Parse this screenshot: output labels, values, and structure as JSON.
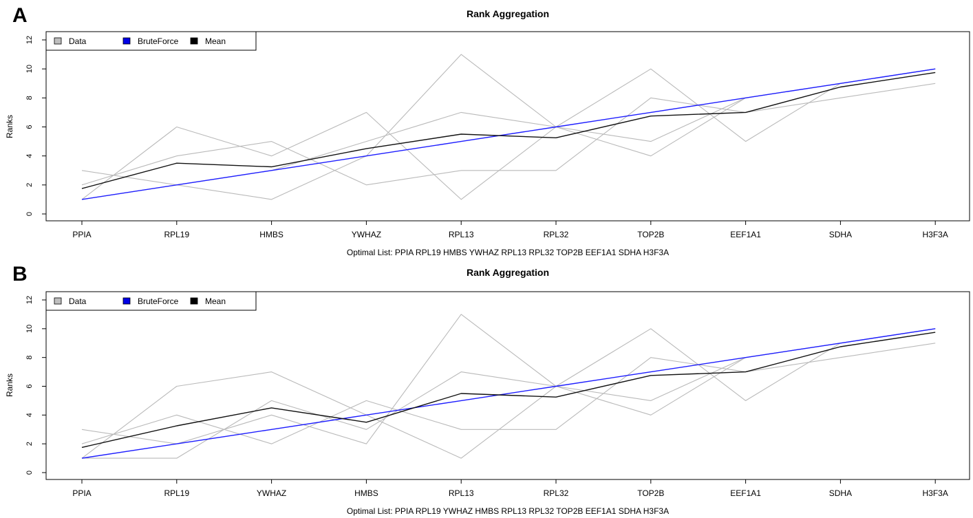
{
  "colors": {
    "data": "#b9b9b9",
    "bruteforce": "#1c1cff",
    "mean": "#111111",
    "legend_data": "#bebebe",
    "legend_bruteforce": "#0000e6",
    "legend_mean": "#000000"
  },
  "legend_placement": "top-left",
  "chart_data": [
    {
      "panel": "A",
      "type": "line",
      "title": "Rank Aggregation",
      "xlabel": "Optimal List: PPIA RPL19 HMBS YWHAZ RPL13 RPL32 TOP2B EEF1A1 SDHA H3F3A",
      "ylabel": "Ranks",
      "ylim": [
        0,
        12
      ],
      "yticks": [
        "0",
        "2",
        "4",
        "6",
        "8",
        "10",
        "12"
      ],
      "categories": [
        "PPIA",
        "RPL19",
        "HMBS",
        "YWHAZ",
        "RPL13",
        "RPL32",
        "TOP2B",
        "EEF1A1",
        "SDHA",
        "H3F3A"
      ],
      "legend": [
        "Data",
        "BruteForce",
        "Mean"
      ],
      "grid": false,
      "series": [
        {
          "name": "Data",
          "values": [
            1,
            6,
            4,
            7,
            1,
            6,
            10,
            5,
            9,
            10
          ]
        },
        {
          "name": "Data",
          "values": [
            3,
            2,
            1,
            4,
            11,
            6,
            4,
            8,
            9,
            10
          ]
        },
        {
          "name": "Data",
          "values": [
            2,
            4,
            5,
            2,
            3,
            3,
            8,
            7,
            8,
            9
          ]
        },
        {
          "name": "Data",
          "values": [
            1,
            2,
            3,
            5,
            7,
            6,
            5,
            8,
            9,
            10
          ]
        },
        {
          "name": "BruteForce",
          "values": [
            1,
            2,
            3,
            4,
            5,
            6,
            7,
            8,
            9,
            10
          ]
        },
        {
          "name": "Mean",
          "values": [
            1.75,
            3.5,
            3.25,
            4.5,
            5.5,
            5.25,
            6.75,
            7,
            8.75,
            9.75
          ]
        }
      ]
    },
    {
      "panel": "B",
      "type": "line",
      "title": "Rank Aggregation",
      "xlabel": "Optimal List: PPIA RPL19 YWHAZ HMBS RPL13 RPL32 TOP2B EEF1A1 SDHA H3F3A",
      "ylabel": "Ranks",
      "ylim": [
        0,
        12
      ],
      "yticks": [
        "0",
        "2",
        "4",
        "6",
        "8",
        "10",
        "12"
      ],
      "categories": [
        "PPIA",
        "RPL19",
        "YWHAZ",
        "HMBS",
        "RPL13",
        "RPL32",
        "TOP2B",
        "EEF1A1",
        "SDHA",
        "H3F3A"
      ],
      "legend": [
        "Data",
        "BruteForce",
        "Mean"
      ],
      "grid": false,
      "series": [
        {
          "name": "Data",
          "values": [
            1,
            6,
            7,
            4,
            1,
            6,
            10,
            5,
            9,
            10
          ]
        },
        {
          "name": "Data",
          "values": [
            3,
            2,
            4,
            2,
            11,
            6,
            4,
            8,
            9,
            10
          ]
        },
        {
          "name": "Data",
          "values": [
            2,
            4,
            2,
            5,
            3,
            3,
            8,
            7,
            8,
            9
          ]
        },
        {
          "name": "Data",
          "values": [
            1,
            1,
            5,
            3,
            7,
            6,
            5,
            8,
            9,
            10
          ]
        },
        {
          "name": "BruteForce",
          "values": [
            1,
            2,
            3,
            4,
            5,
            6,
            7,
            8,
            9,
            10
          ]
        },
        {
          "name": "Mean",
          "values": [
            1.75,
            3.25,
            4.5,
            3.5,
            5.5,
            5.25,
            6.75,
            7,
            8.75,
            9.75
          ]
        }
      ]
    }
  ]
}
